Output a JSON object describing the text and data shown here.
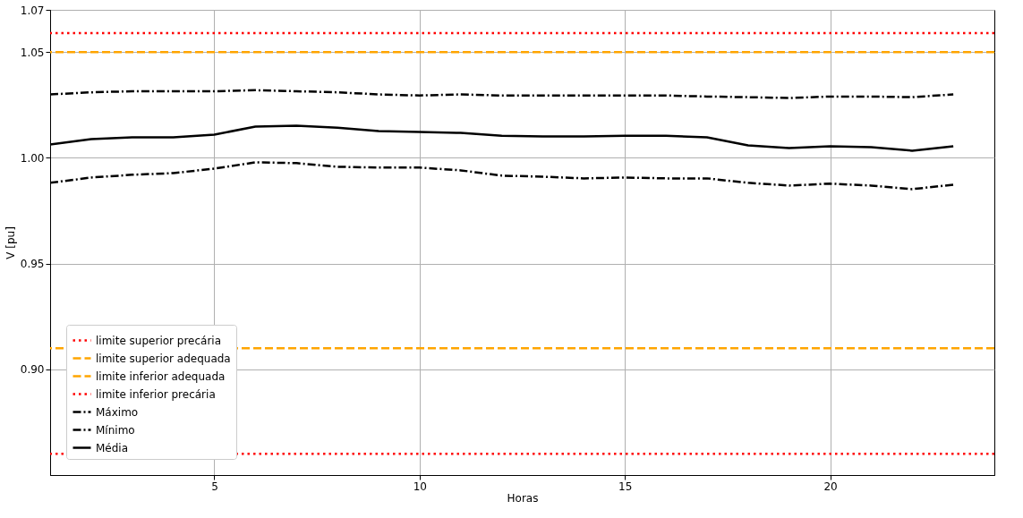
{
  "chart_data": {
    "type": "line",
    "xlabel": "Horas",
    "ylabel": "V [pu]",
    "x": [
      1,
      2,
      3,
      4,
      5,
      6,
      7,
      8,
      9,
      10,
      11,
      12,
      13,
      14,
      15,
      16,
      17,
      18,
      19,
      20,
      21,
      22,
      23
    ],
    "xlim": [
      1,
      24
    ],
    "xticks": [
      5,
      10,
      15,
      20
    ],
    "ylim": [
      0.85,
      1.07
    ],
    "yticks": [
      {
        "value": 0.9,
        "label": "0.90"
      },
      {
        "value": 0.95,
        "label": "0.95"
      },
      {
        "value": 1.0,
        "label": "1.00"
      },
      {
        "value": 1.05,
        "label": "1.05"
      },
      {
        "value": 1.07,
        "label": "1.07"
      }
    ],
    "ref_lines": [
      {
        "axis": "y",
        "value": 1.059,
        "label": "limite superior precária",
        "color": "#ff0000",
        "line_style": "dotted"
      },
      {
        "axis": "y",
        "value": 1.05,
        "label": "limite superior adequada",
        "color": "#ffa500",
        "line_style": "dashed"
      },
      {
        "axis": "y",
        "value": 0.91,
        "label": "limite inferior adequada",
        "color": "#ffa500",
        "line_style": "dashed"
      },
      {
        "axis": "y",
        "value": 0.86,
        "label": "limite inferior precária",
        "color": "#ff0000",
        "line_style": "dotted"
      }
    ],
    "series": [
      {
        "name": "Máximo",
        "color": "#000000",
        "line_style": "dashdot",
        "values": [
          1.03,
          1.031,
          1.0315,
          1.0315,
          1.0315,
          1.032,
          1.0315,
          1.031,
          1.03,
          1.0295,
          1.03,
          1.0295,
          1.0295,
          1.0295,
          1.0295,
          1.0295,
          1.029,
          1.0287,
          1.0283,
          1.029,
          1.029,
          1.0287,
          1.03
        ]
      },
      {
        "name": "Mínimo",
        "color": "#000000",
        "line_style": "dashdot",
        "values": [
          0.9882,
          0.9907,
          0.992,
          0.9928,
          0.9949,
          0.9979,
          0.9975,
          0.9958,
          0.9954,
          0.9954,
          0.9941,
          0.9916,
          0.9911,
          0.9903,
          0.9907,
          0.9903,
          0.9903,
          0.9882,
          0.9869,
          0.9878,
          0.9869,
          0.9852,
          0.9873
        ]
      },
      {
        "name": "Média",
        "color": "#000000",
        "line_style": "solid",
        "values": [
          1.0063,
          1.0089,
          1.0097,
          1.0097,
          1.011,
          1.0148,
          1.0152,
          1.0143,
          1.0127,
          1.0122,
          1.0118,
          1.0105,
          1.0101,
          1.0101,
          1.0105,
          1.0105,
          1.0097,
          1.0059,
          1.0046,
          1.0055,
          1.0051,
          1.0034,
          1.0055
        ]
      }
    ],
    "grid": true,
    "legend": "bottom left"
  }
}
